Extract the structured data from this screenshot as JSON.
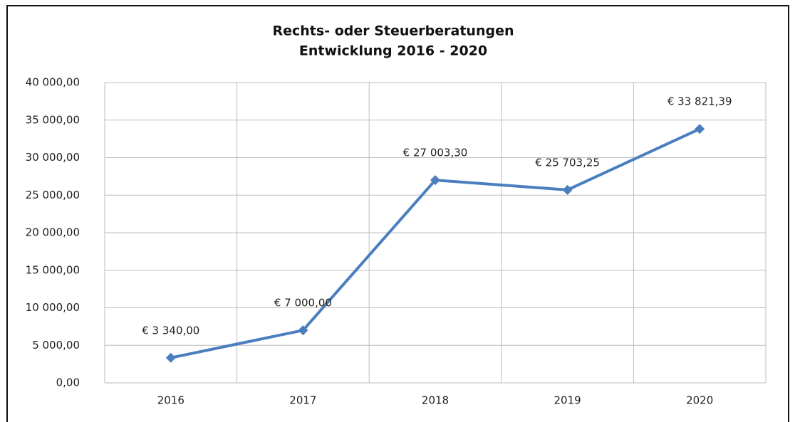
{
  "chart_data": {
    "type": "line",
    "title": "Rechts- oder Steuerberatungen",
    "subtitle": "Entwicklung 2016 - 2020",
    "categories": [
      "2016",
      "2017",
      "2018",
      "2019",
      "2020"
    ],
    "series": [
      {
        "name": "Rechts- oder Steuerberatungen",
        "color": "#4a7ebf",
        "values": [
          3340.0,
          7000.0,
          27003.3,
          25703.25,
          33821.39
        ],
        "value_labels": [
          "€ 3 340,00",
          "€ 7 000,00",
          "€ 27 003,30",
          "€ 25 703,25",
          "€ 33 821,39"
        ]
      }
    ],
    "ylim": [
      0,
      40000
    ],
    "yticks": [
      {
        "value": 0,
        "label": "0,00"
      },
      {
        "value": 5000,
        "label": "5 000,00"
      },
      {
        "value": 10000,
        "label": "10 000,00"
      },
      {
        "value": 15000,
        "label": "15 000,00"
      },
      {
        "value": 20000,
        "label": "20 000,00"
      },
      {
        "value": 25000,
        "label": "25 000,00"
      },
      {
        "value": 30000,
        "label": "30 000,00"
      },
      {
        "value": 35000,
        "label": "35 000,00"
      },
      {
        "value": 40000,
        "label": "40 000,00"
      }
    ],
    "grid": true,
    "legend": false
  }
}
